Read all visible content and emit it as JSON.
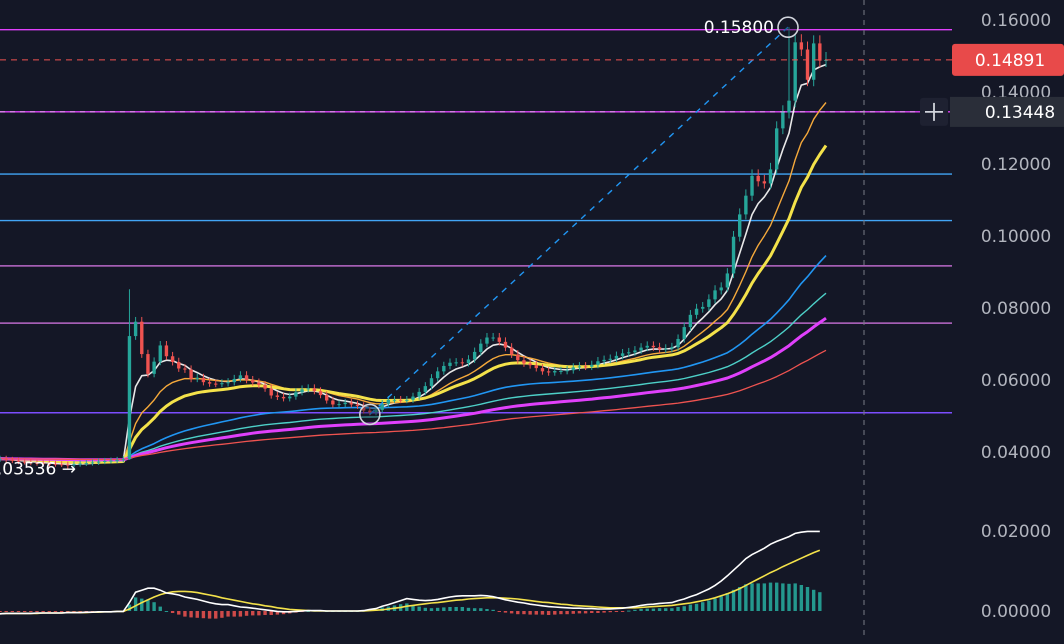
{
  "colors": {
    "background": "#141726",
    "up": "#26a69a",
    "down": "#ef5350",
    "axis_text": "#b2b5be"
  },
  "chart_data": {
    "type": "candlestick",
    "y_axis_ticks": [
      "0.16000",
      "0.14000",
      "0.12000",
      "0.10000",
      "0.08000",
      "0.06000",
      "0.04000",
      "0.02000",
      "0.00000"
    ],
    "price_axis_ticks": [
      0.16,
      0.14,
      0.12,
      0.1,
      0.08,
      0.06,
      0.04
    ],
    "macd_axis_ticks": [
      0.02,
      0.0
    ],
    "price_range": [
      0.0325,
      0.166
    ],
    "current_price_label": "0.14891",
    "current_price": 0.14891,
    "crosshair_price_label": "0.13448",
    "crosshair_price": 0.13448,
    "high_marker_label": "0.15800",
    "high_price": 0.158,
    "low_marker_label": "0.03536 →",
    "low_price": 0.03536,
    "horizontal_levels": [
      {
        "price": 0.1573,
        "color": "#e040fb"
      },
      {
        "price": 0.1345,
        "color": "#e040fb"
      },
      {
        "price": 0.1172,
        "color": "#42a5f5"
      },
      {
        "price": 0.1043,
        "color": "#42a5f5"
      },
      {
        "price": 0.0917,
        "color": "#ba68c8"
      },
      {
        "price": 0.0758,
        "color": "#ba68c8"
      },
      {
        "price": 0.0509,
        "color": "#7c4dff"
      }
    ],
    "closes": [
      0.0381,
      0.0378,
      0.0376,
      0.0373,
      0.0372,
      0.037,
      0.0369,
      0.0368,
      0.0367,
      0.0366,
      0.0365,
      0.0364,
      0.0366,
      0.0368,
      0.0369,
      0.0371,
      0.0373,
      0.0375,
      0.0376,
      0.0378,
      0.038,
      0.0722,
      0.0762,
      0.0672,
      0.0617,
      0.0651,
      0.0696,
      0.0666,
      0.065,
      0.0632,
      0.0629,
      0.0603,
      0.0606,
      0.0594,
      0.059,
      0.0589,
      0.0591,
      0.0594,
      0.0603,
      0.0613,
      0.06,
      0.0593,
      0.0586,
      0.0576,
      0.0557,
      0.0553,
      0.0549,
      0.0554,
      0.0566,
      0.0574,
      0.0577,
      0.0569,
      0.0558,
      0.0543,
      0.0532,
      0.0533,
      0.0537,
      0.0532,
      0.0528,
      0.0515,
      0.051,
      0.0517,
      0.0534,
      0.0545,
      0.0545,
      0.0544,
      0.0545,
      0.0554,
      0.0567,
      0.0583,
      0.0605,
      0.0624,
      0.0639,
      0.0648,
      0.0649,
      0.0647,
      0.0657,
      0.0678,
      0.0701,
      0.0718,
      0.0718,
      0.0706,
      0.069,
      0.0671,
      0.0655,
      0.0646,
      0.0641,
      0.0633,
      0.0624,
      0.0621,
      0.0625,
      0.0625,
      0.0627,
      0.0635,
      0.0638,
      0.0637,
      0.0642,
      0.0652,
      0.0656,
      0.0659,
      0.0667,
      0.0674,
      0.0677,
      0.0682,
      0.069,
      0.0695,
      0.0691,
      0.0685,
      0.0687,
      0.0691,
      0.0714,
      0.0747,
      0.0781,
      0.0798,
      0.0803,
      0.0824,
      0.0849,
      0.0857,
      0.0896,
      0.0998,
      0.106,
      0.1112,
      0.1167,
      0.1152,
      0.1146,
      0.1185,
      0.1299,
      0.1343,
      0.1376,
      0.1538,
      0.1518,
      0.1434,
      0.1535,
      0.1487,
      0.14891
    ],
    "macd": {
      "macd_line": [
        -0.0007,
        -0.0006,
        -0.0006,
        -0.0006,
        -0.0006,
        -0.0006,
        -0.0005,
        -0.0005,
        -0.0005,
        -0.0005,
        -0.0005,
        -0.0004,
        -0.0004,
        -0.0004,
        -0.0003,
        -0.0003,
        -0.0002,
        -0.0002,
        -0.0002,
        -0.0001,
        -0.0001,
        0.0021,
        0.0047,
        0.0052,
        0.0057,
        0.0057,
        0.0052,
        0.0045,
        0.0043,
        0.004,
        0.0035,
        0.0032,
        0.0029,
        0.0025,
        0.0021,
        0.0018,
        0.0016,
        0.0016,
        0.0013,
        0.001,
        0.0009,
        0.0007,
        0.0005,
        0.0003,
        0.0001,
        -0.0001,
        -0.0002,
        -0.0002,
        -0.0001,
        -0.0,
        0.0001,
        0.0001,
        0.0001,
        0.0,
        0.0,
        0.0,
        0.0,
        -0.0,
        0.0,
        0.0001,
        0.0004,
        0.0006,
        0.0012,
        0.0016,
        0.0021,
        0.0026,
        0.0031,
        0.0029,
        0.0027,
        0.0026,
        0.0027,
        0.0029,
        0.0032,
        0.0035,
        0.0037,
        0.0038,
        0.0038,
        0.0038,
        0.0039,
        0.0038,
        0.0036,
        0.0032,
        0.0028,
        0.0025,
        0.0022,
        0.002,
        0.0017,
        0.0015,
        0.0013,
        0.0011,
        0.001,
        0.0009,
        0.0008,
        0.0007,
        0.0007,
        0.0006,
        0.0006,
        0.0005,
        0.0005,
        0.0005,
        0.0006,
        0.0007,
        0.0009,
        0.0011,
        0.0014,
        0.0016,
        0.0017,
        0.0019,
        0.002,
        0.0021,
        0.0026,
        0.003,
        0.0036,
        0.0041,
        0.0048,
        0.0055,
        0.0064,
        0.0075,
        0.0088,
        0.0102,
        0.0116,
        0.0131,
        0.0141,
        0.0149,
        0.0157,
        0.0167,
        0.0174,
        0.018,
        0.0186,
        0.0194,
        0.0197,
        0.0199,
        0.0199,
        0.0199
      ],
      "signal_line": [
        -0.0007,
        -0.0006,
        -0.0006,
        -0.0006,
        -0.0006,
        -0.0006,
        -0.0006,
        -0.0005,
        -0.0005,
        -0.0005,
        -0.0005,
        -0.0004,
        -0.0004,
        -0.0004,
        -0.0004,
        -0.0003,
        -0.0003,
        -0.0002,
        -0.0002,
        -0.0001,
        -0.0001,
        0.0005,
        0.0013,
        0.0021,
        0.0028,
        0.0035,
        0.0041,
        0.0045,
        0.0048,
        0.0049,
        0.0049,
        0.0048,
        0.0046,
        0.0043,
        0.004,
        0.0037,
        0.0033,
        0.003,
        0.0027,
        0.0024,
        0.0021,
        0.0018,
        0.0016,
        0.0013,
        0.0011,
        0.0008,
        0.0006,
        0.0004,
        0.0003,
        0.0002,
        0.0001,
        0.0,
        0.0,
        0.0,
        0.0,
        0.0,
        0.0,
        0.0,
        0.0,
        0.0,
        0.0001,
        0.0002,
        0.0003,
        0.0005,
        0.0007,
        0.0009,
        0.0012,
        0.0014,
        0.0016,
        0.0018,
        0.002,
        0.0021,
        0.0023,
        0.0025,
        0.0027,
        0.0028,
        0.003,
        0.0031,
        0.0032,
        0.0033,
        0.0033,
        0.0033,
        0.0032,
        0.0031,
        0.003,
        0.0028,
        0.0026,
        0.0024,
        0.0022,
        0.0021,
        0.0019,
        0.0017,
        0.0016,
        0.0014,
        0.0013,
        0.0012,
        0.0011,
        0.001,
        0.0009,
        0.0008,
        0.0008,
        0.0008,
        0.0008,
        0.0008,
        0.0009,
        0.001,
        0.0011,
        0.0012,
        0.0013,
        0.0014,
        0.0016,
        0.0018,
        0.002,
        0.0023,
        0.0026,
        0.0029,
        0.0033,
        0.0038,
        0.0043,
        0.0049,
        0.0056,
        0.0064,
        0.0072,
        0.008,
        0.0088,
        0.0096,
        0.0103,
        0.0111,
        0.0118,
        0.0125,
        0.0132,
        0.0139,
        0.0146,
        0.0152
      ],
      "histogram": [
        -0.0001,
        -0.0001,
        -0.0001,
        -0.0001,
        -0.0001,
        -0.0001,
        -0.0001,
        -0.0001,
        -0.0001,
        -0.0001,
        -0.0001,
        -0.0001,
        -0.0001,
        -0.0001,
        -0.0001,
        -0.0001,
        -0.0001,
        -0.0001,
        -0.0001,
        -0.0001,
        -0.0001,
        0.0016,
        0.0034,
        0.0031,
        0.0029,
        0.0022,
        0.0011,
        0.0,
        -0.0005,
        -0.0009,
        -0.0014,
        -0.0016,
        -0.0017,
        -0.0018,
        -0.0019,
        -0.0019,
        -0.0017,
        -0.0014,
        -0.0014,
        -0.0014,
        -0.0012,
        -0.0011,
        -0.0011,
        -0.001,
        -0.001,
        -0.0009,
        -0.0008,
        -0.0006,
        -0.0004,
        -0.0002,
        0.0,
        0.0001,
        0.0001,
        0.0,
        0.0,
        0.0,
        0.0,
        -0.0,
        0.0,
        0.0001,
        0.0003,
        0.0004,
        0.0009,
        0.0011,
        0.0014,
        0.0017,
        0.0019,
        0.0015,
        0.0011,
        0.0008,
        0.0007,
        0.0008,
        0.0009,
        0.001,
        0.001,
        0.001,
        0.0008,
        0.0007,
        0.0007,
        0.0005,
        0.0003,
        -0.0001,
        -0.0004,
        -0.0006,
        -0.0008,
        -0.0008,
        -0.0009,
        -0.0009,
        -0.0009,
        -0.001,
        -0.0009,
        -0.0008,
        -0.0008,
        -0.0007,
        -0.0006,
        -0.0006,
        -0.0005,
        -0.0005,
        -0.0004,
        -0.0003,
        -0.0002,
        -0.0001,
        0.0001,
        0.0003,
        0.0005,
        0.0006,
        0.0006,
        0.0007,
        0.0007,
        0.0007,
        0.001,
        0.0012,
        0.0016,
        0.0018,
        0.0022,
        0.0026,
        0.0031,
        0.0037,
        0.0045,
        0.0053,
        0.006,
        0.0067,
        0.0069,
        0.0069,
        0.0069,
        0.0071,
        0.0071,
        0.0069,
        0.0068,
        0.0069,
        0.0065,
        0.006,
        0.0053,
        0.0047
      ],
      "range": [
        -0.0025,
        0.0225
      ]
    }
  }
}
